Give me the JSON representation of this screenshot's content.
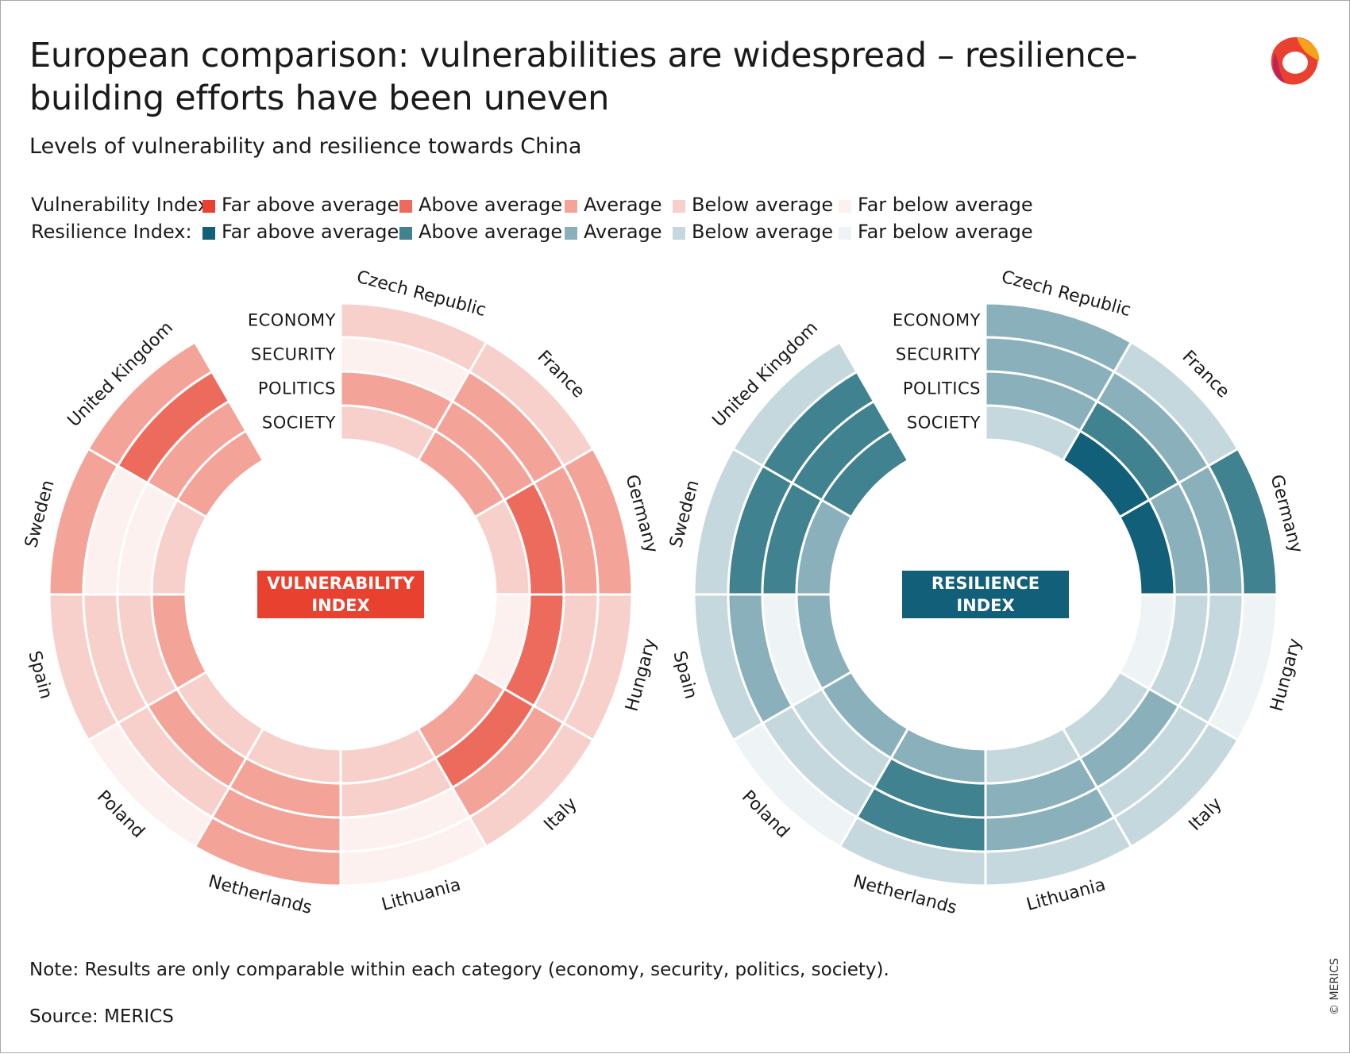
{
  "title": "European comparison: vulnerabilities are widespread – resilience-building efforts have been uneven",
  "subtitle": "Levels of vulnerability and resilience towards China",
  "legend": {
    "levels": [
      "Far above average",
      "Above average",
      "Average",
      "Below average",
      "Far below average"
    ],
    "rows": [
      {
        "label": "Vulnerability Index:",
        "colors": [
          "#e8412f",
          "#ed6b5c",
          "#f3a398",
          "#f8d0cb",
          "#fdf1ef"
        ]
      },
      {
        "label": "Resilience Index:",
        "colors": [
          "#115f78",
          "#40828f",
          "#8ab0bb",
          "#c5d8de",
          "#eef4f5"
        ]
      }
    ]
  },
  "chart_data": [
    {
      "type": "radial",
      "center_label": "VULNERABILITY INDEX",
      "center_color": "#e8412f",
      "rings": [
        "ECONOMY",
        "SECURITY",
        "POLITICS",
        "SOCIETY"
      ],
      "countries": [
        "Czech Republic",
        "France",
        "Germany",
        "Hungary",
        "Italy",
        "Lithuania",
        "Netherlands",
        "Poland",
        "Spain",
        "Sweden",
        "United Kingdom"
      ],
      "levels_key": "1 = Far above average … 5 = Far below average",
      "values": {
        "Czech Republic": [
          4,
          5,
          3,
          4
        ],
        "France": [
          4,
          3,
          3,
          3
        ],
        "Germany": [
          3,
          3,
          2,
          4
        ],
        "Hungary": [
          4,
          4,
          2,
          5
        ],
        "Italy": [
          4,
          3,
          2,
          3
        ],
        "Lithuania": [
          5,
          5,
          4,
          4
        ],
        "Netherlands": [
          3,
          3,
          3,
          4
        ],
        "Poland": [
          5,
          4,
          3,
          4
        ],
        "Spain": [
          4,
          4,
          4,
          3
        ],
        "Sweden": [
          3,
          5,
          5,
          4
        ],
        "United Kingdom": [
          3,
          2,
          3,
          3
        ]
      }
    },
    {
      "type": "radial",
      "center_label": "RESILIENCE INDEX",
      "center_color": "#115f78",
      "rings": [
        "ECONOMY",
        "SECURITY",
        "POLITICS",
        "SOCIETY"
      ],
      "countries": [
        "Czech Republic",
        "France",
        "Germany",
        "Hungary",
        "Italy",
        "Lithuania",
        "Netherlands",
        "Poland",
        "Spain",
        "Sweden",
        "United Kingdom"
      ],
      "levels_key": "1 = Far above average … 5 = Far below average",
      "values": {
        "Czech Republic": [
          3,
          3,
          3,
          4
        ],
        "France": [
          4,
          3,
          2,
          1
        ],
        "Germany": [
          2,
          3,
          3,
          1
        ],
        "Hungary": [
          5,
          4,
          4,
          5
        ],
        "Italy": [
          4,
          4,
          3,
          4
        ],
        "Lithuania": [
          4,
          3,
          3,
          4
        ],
        "Netherlands": [
          4,
          2,
          2,
          3
        ],
        "Poland": [
          5,
          4,
          4,
          3
        ],
        "Spain": [
          4,
          3,
          5,
          3
        ],
        "Sweden": [
          4,
          2,
          2,
          3
        ],
        "United Kingdom": [
          4,
          2,
          2,
          2
        ]
      }
    }
  ],
  "note": "Note: Results are only comparable within each category (economy, security, politics, society).",
  "source": "Source: MERICS",
  "copyright": "© MERICS"
}
